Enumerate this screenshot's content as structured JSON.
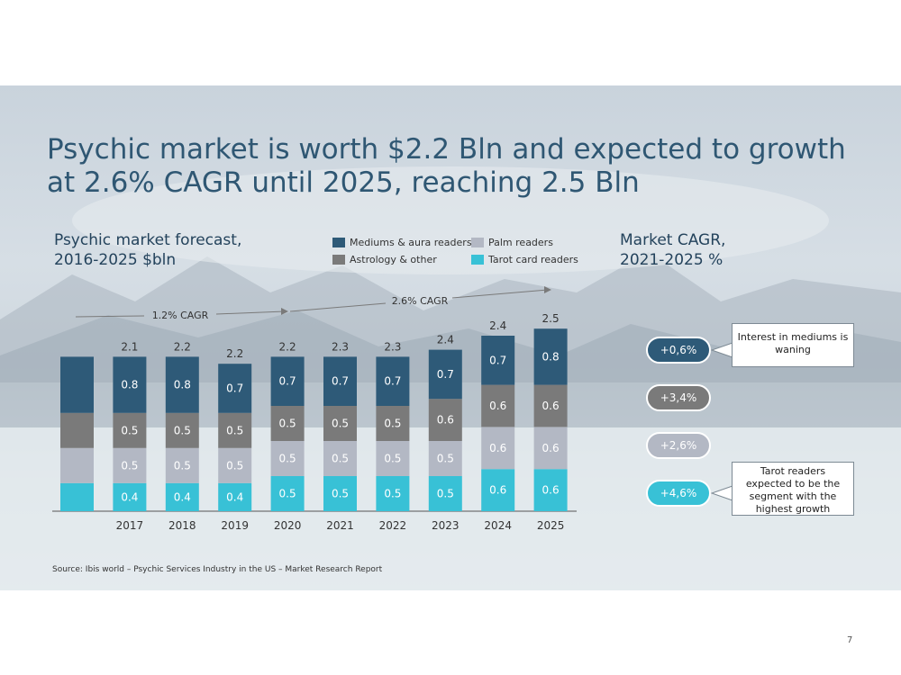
{
  "title": "Psychic market is worth $2.2 Bln and expected to growth at 2.6% CAGR until 2025, reaching 2.5 Bln",
  "left_subtitle": {
    "line1": "Psychic market forecast,",
    "line2": "2016-2025  $bln"
  },
  "right_subtitle": {
    "line1": "Market CAGR,",
    "line2": "2021-2025  %"
  },
  "source": "Source: Ibis world – Psychic Services Industry in the US – Market Research Report",
  "page_number": "7",
  "colors": {
    "mediums": "#2e5a78",
    "astrology": "#7a7a7a",
    "palm": "#b3b8c4",
    "tarot": "#38c1d6",
    "title": "#2f5773"
  },
  "legend": [
    {
      "key": "mediums",
      "label": "Mediums & aura readers"
    },
    {
      "key": "palm",
      "label": "Palm  readers"
    },
    {
      "key": "astrology",
      "label": "Astrology & other"
    },
    {
      "key": "tarot",
      "label": "Tarot card readers"
    }
  ],
  "cagr_arrows": [
    {
      "label": "1.2% CAGR"
    },
    {
      "label": "2.6% CAGR"
    }
  ],
  "cagr_pills": [
    {
      "key": "mediums",
      "label": "+0,6%"
    },
    {
      "key": "astrology",
      "label": "+3,4%"
    },
    {
      "key": "palm",
      "label": "+2,6%"
    },
    {
      "key": "tarot",
      "label": "+4,6%"
    }
  ],
  "callouts": [
    {
      "text": "Interest in mediums is waning"
    },
    {
      "text": "Tarot readers expected to be the segment with the highest growth"
    }
  ],
  "chart_data": {
    "type": "bar",
    "stacked": true,
    "categories": [
      "",
      "2017",
      "2018",
      "2019",
      "2020",
      "2021",
      "2022",
      "2023",
      "2024",
      "2025"
    ],
    "series": [
      {
        "name": "Tarot card readers",
        "key": "tarot",
        "values": [
          0.4,
          0.4,
          0.4,
          0.4,
          0.5,
          0.5,
          0.5,
          0.5,
          0.6,
          0.6
        ],
        "labels": [
          "",
          "0.4",
          "0.4",
          "0.4",
          "0.5",
          "0.5",
          "0.5",
          "0.5",
          "0.6",
          "0.6"
        ]
      },
      {
        "name": "Palm  readers",
        "key": "palm",
        "values": [
          0.5,
          0.5,
          0.5,
          0.5,
          0.5,
          0.5,
          0.5,
          0.5,
          0.6,
          0.6
        ],
        "labels": [
          "",
          "0.5",
          "0.5",
          "0.5",
          "0.5",
          "0.5",
          "0.5",
          "0.5",
          "0.6",
          "0.6"
        ]
      },
      {
        "name": "Astrology & other",
        "key": "astrology",
        "values": [
          0.5,
          0.5,
          0.5,
          0.5,
          0.5,
          0.5,
          0.5,
          0.6,
          0.6,
          0.6
        ],
        "labels": [
          "",
          "0.5",
          "0.5",
          "0.5",
          "0.5",
          "0.5",
          "0.5",
          "0.6",
          "0.6",
          "0.6"
        ]
      },
      {
        "name": "Mediums & aura readers",
        "key": "mediums",
        "values": [
          0.8,
          0.8,
          0.8,
          0.7,
          0.7,
          0.7,
          0.7,
          0.7,
          0.7,
          0.8
        ],
        "labels": [
          "",
          "0.8",
          "0.8",
          "0.7",
          "0.7",
          "0.7",
          "0.7",
          "0.7",
          "0.7",
          "0.8"
        ]
      }
    ],
    "totals": [
      "",
      "2.1",
      "2.2",
      "2.2",
      "2.2",
      "2.3",
      "2.3",
      "2.4",
      "2.4",
      "2.5"
    ],
    "grid": false
  }
}
